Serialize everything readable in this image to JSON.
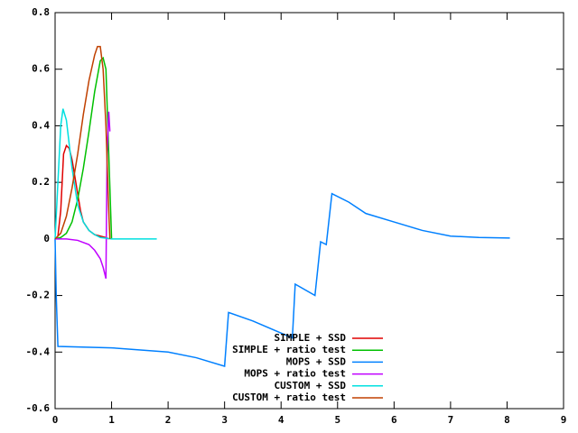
{
  "chart_data": {
    "type": "line",
    "xlim": [
      0,
      9
    ],
    "xticks": [
      0,
      1,
      2,
      3,
      4,
      5,
      6,
      7,
      8,
      9
    ],
    "ylim": [
      -0.6,
      0.8
    ],
    "yticks": [
      -0.6,
      -0.4,
      -0.2,
      0,
      0.2,
      0.4,
      0.6,
      0.8
    ],
    "legend": "bottom-right",
    "series": [
      {
        "name": "SIMPLE + SSD",
        "color": "#e00000",
        "x": [
          0,
          0.05,
          0.1,
          0.15,
          0.2,
          0.25,
          0.3,
          0.35,
          0.4,
          0.45,
          0.5,
          0.6,
          0.7,
          0.8,
          0.9,
          0.95
        ],
        "values": [
          0,
          0.01,
          0.1,
          0.3,
          0.33,
          0.32,
          0.28,
          0.22,
          0.16,
          0.1,
          0.06,
          0.03,
          0.015,
          0.01,
          0.005,
          0
        ]
      },
      {
        "name": "SIMPLE + ratio test",
        "color": "#00c000",
        "x": [
          0,
          0.1,
          0.2,
          0.3,
          0.4,
          0.5,
          0.6,
          0.7,
          0.8,
          0.85,
          0.9,
          0.95,
          1.0
        ],
        "values": [
          0,
          0.005,
          0.02,
          0.06,
          0.14,
          0.25,
          0.38,
          0.52,
          0.63,
          0.64,
          0.6,
          0.3,
          0
        ]
      },
      {
        "name": "MOPS + SSD",
        "color": "#0080ff",
        "x": [
          0,
          0.02,
          0.05,
          1,
          2,
          2.5,
          3,
          3.07,
          3.5,
          4.2,
          4.25,
          4.6,
          4.7,
          4.8,
          4.9,
          5.2,
          5.5,
          6,
          6.5,
          7,
          7.5,
          8.05
        ],
        "values": [
          0,
          -0.2,
          -0.38,
          -0.385,
          -0.4,
          -0.42,
          -0.45,
          -0.26,
          -0.29,
          -0.35,
          -0.16,
          -0.2,
          -0.01,
          -0.02,
          0.16,
          0.13,
          0.09,
          0.06,
          0.03,
          0.01,
          0.005,
          0.003
        ]
      },
      {
        "name": "MOPS + ratio test",
        "color": "#c000ff",
        "x": [
          0,
          0.2,
          0.4,
          0.6,
          0.7,
          0.8,
          0.85,
          0.9,
          0.92,
          0.95,
          0.97
        ],
        "values": [
          0,
          0,
          -0.005,
          -0.02,
          -0.04,
          -0.07,
          -0.1,
          -0.14,
          0.3,
          0.45,
          0.38
        ]
      },
      {
        "name": "CUSTOM + SSD",
        "color": "#00e0e0",
        "x": [
          0,
          0.05,
          0.1,
          0.14,
          0.2,
          0.3,
          0.4,
          0.5,
          0.6,
          0.7,
          0.8,
          1.0,
          1.4,
          1.8
        ],
        "values": [
          0,
          0.2,
          0.4,
          0.46,
          0.42,
          0.25,
          0.12,
          0.06,
          0.03,
          0.015,
          0.005,
          0,
          0,
          0
        ]
      },
      {
        "name": "CUSTOM + ratio test",
        "color": "#c04000",
        "x": [
          0,
          0.1,
          0.2,
          0.3,
          0.4,
          0.5,
          0.6,
          0.7,
          0.75,
          0.8,
          0.85,
          0.9,
          0.95,
          0.97
        ],
        "values": [
          0,
          0.02,
          0.08,
          0.18,
          0.3,
          0.44,
          0.56,
          0.65,
          0.68,
          0.68,
          0.6,
          0.4,
          0.1,
          0
        ]
      }
    ]
  }
}
